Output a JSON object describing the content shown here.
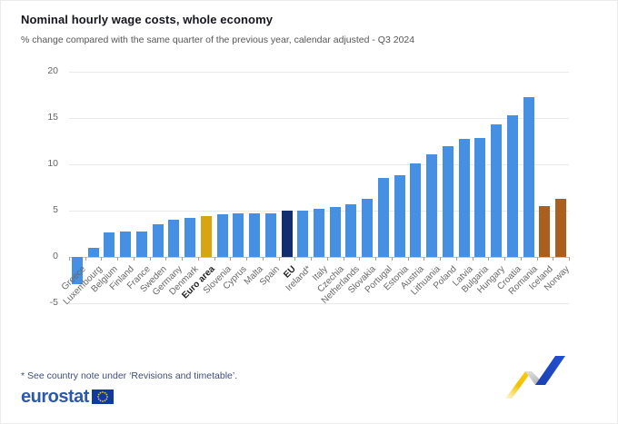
{
  "header": {
    "title": "Nominal hourly wage costs, whole economy",
    "subtitle": "% change compared with the same quarter of the previous year, calendar adjusted - Q3 2024"
  },
  "chart_data": {
    "type": "bar",
    "title": "Nominal hourly wage costs, whole economy",
    "subtitle": "% change compared with the same quarter of the previous year, calendar adjusted - Q3 2024",
    "categories": [
      "Greece",
      "Luxembourg",
      "Belgium",
      "Finland",
      "France",
      "Sweden",
      "Germany",
      "Denmark",
      "Euro area",
      "Slovenia",
      "Cyprus",
      "Malta",
      "Spain",
      "EU",
      "Ireland*",
      "Italy",
      "Czechia",
      "Netherlands",
      "Slovakia",
      "Portugal",
      "Estonia",
      "Austria",
      "Lithuania",
      "Poland",
      "Latvia",
      "Bulgaria",
      "Hungary",
      "Croatia",
      "Romania",
      "Iceland",
      "Norway"
    ],
    "values": [
      -2.9,
      1.0,
      2.6,
      2.7,
      2.7,
      3.5,
      4.0,
      4.2,
      4.4,
      4.6,
      4.7,
      4.7,
      4.7,
      5.0,
      5.0,
      5.2,
      5.4,
      5.7,
      6.3,
      8.5,
      8.8,
      10.1,
      11.1,
      12.0,
      12.7,
      12.8,
      14.3,
      15.3,
      17.3,
      5.5,
      6.3
    ],
    "xlabel": "",
    "ylabel": "",
    "ylim": [
      -5,
      20
    ],
    "ytick_interval": 5,
    "grid": true,
    "legend": false,
    "bold_categories": [
      "Euro area",
      "EU"
    ],
    "colors": {
      "default": "#4590e2",
      "Euro area": "#d8a413",
      "EU": "#122e6e",
      "Iceland": "#aa5f1e",
      "Norway": "#aa5f1e"
    }
  },
  "footer": {
    "note": "* See country note under ‘Revisions and timetable’.",
    "logo_text": "eurostat"
  },
  "icons": {
    "eu_flag": "eu-flag-icon",
    "decoration": "trend-arrow-decoration-icon"
  }
}
